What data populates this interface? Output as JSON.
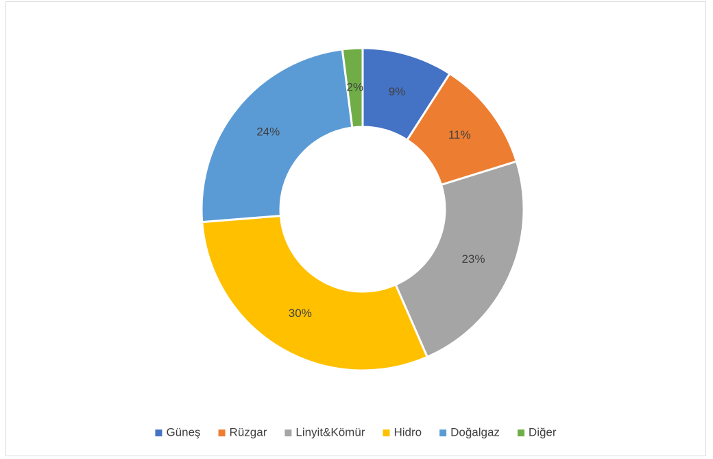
{
  "chart_data": {
    "type": "donut",
    "categories": [
      "Güneş",
      "Rüzgar",
      "Linyit&Kömür",
      "Hidro",
      "Doğalgaz",
      "Diğer"
    ],
    "values": [
      9,
      11,
      23,
      30,
      24,
      2
    ],
    "value_labels": [
      "9%",
      "11%",
      "23%",
      "30%",
      "24%",
      "2%"
    ],
    "colors": [
      "#4472c4",
      "#ed7d31",
      "#a5a5a5",
      "#ffc000",
      "#5b9bd5",
      "#70ad47"
    ],
    "legend": "bottom"
  }
}
